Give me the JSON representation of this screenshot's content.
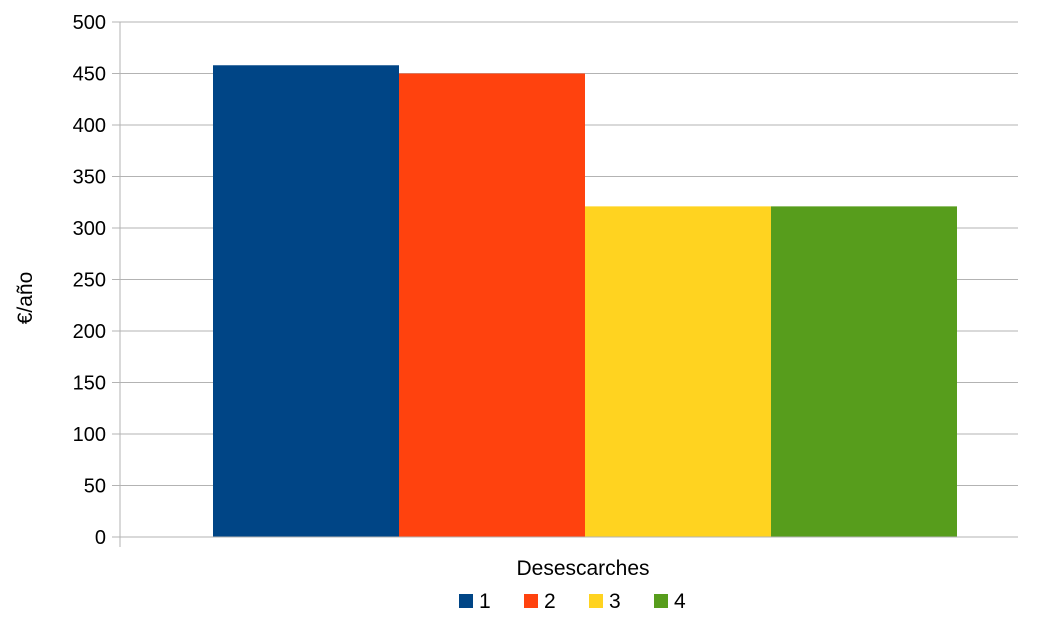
{
  "chart_data": {
    "type": "bar",
    "title": "",
    "xlabel": "",
    "ylabel": "€/año",
    "categories": [
      "Desescarches"
    ],
    "series": [
      {
        "name": "1",
        "values": [
          458
        ],
        "color": "#004586"
      },
      {
        "name": "2",
        "values": [
          450
        ],
        "color": "#ff420e"
      },
      {
        "name": "3",
        "values": [
          321
        ],
        "color": "#ffd320"
      },
      {
        "name": "4",
        "values": [
          321
        ],
        "color": "#579d1c"
      }
    ],
    "ylim": [
      0,
      500
    ],
    "yticks": [
      0,
      50,
      100,
      150,
      200,
      250,
      300,
      350,
      400,
      450,
      500
    ],
    "grid": true,
    "legend": "bottom"
  }
}
